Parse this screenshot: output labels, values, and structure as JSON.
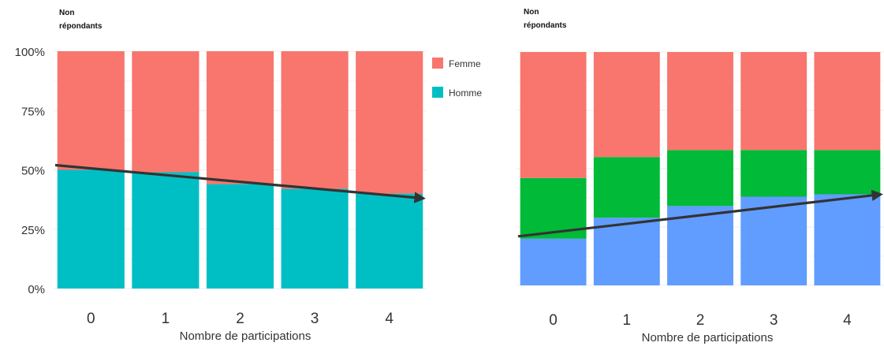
{
  "chart_data": [
    {
      "type": "bar",
      "stacked": true,
      "normalized": true,
      "header_lines": [
        "Non",
        "répondants"
      ],
      "categories": [
        "0",
        "1",
        "2",
        "3",
        "4"
      ],
      "xlabel": "Nombre de participations",
      "ylabel": "",
      "ylim": [
        0,
        1
      ],
      "yticks": [
        "0%",
        "25%",
        "50%",
        "75%",
        "100%"
      ],
      "grid": true,
      "legend": "right",
      "series": [
        {
          "name": "Homme",
          "color": "#00BFC4",
          "values": [
            0.5,
            0.49,
            0.44,
            0.42,
            0.4
          ]
        },
        {
          "name": "Femme",
          "color": "#F8766D",
          "values": [
            0.5,
            0.51,
            0.56,
            0.58,
            0.6
          ]
        }
      ],
      "trend_arrow": {
        "from": [
          0,
          0.52
        ],
        "to": [
          4,
          0.38
        ],
        "color": "#333333"
      }
    },
    {
      "type": "bar",
      "stacked": true,
      "normalized": true,
      "header_lines": [
        "Non",
        "répondants"
      ],
      "categories": [
        "0",
        "1",
        "2",
        "3",
        "4"
      ],
      "xlabel": "Nombre de participations",
      "ylabel": "",
      "ylim": [
        0,
        1
      ],
      "grid": true,
      "series": [
        {
          "color": "#619CFF",
          "values": [
            0.2,
            0.29,
            0.34,
            0.38,
            0.39
          ]
        },
        {
          "color": "#00BA38",
          "values": [
            0.26,
            0.26,
            0.24,
            0.2,
            0.19
          ]
        },
        {
          "color": "#F8766D",
          "values": [
            0.54,
            0.45,
            0.42,
            0.42,
            0.42
          ]
        }
      ],
      "trend_arrow": {
        "from": [
          0,
          0.21
        ],
        "to": [
          4,
          0.39
        ],
        "color": "#333333"
      }
    }
  ]
}
